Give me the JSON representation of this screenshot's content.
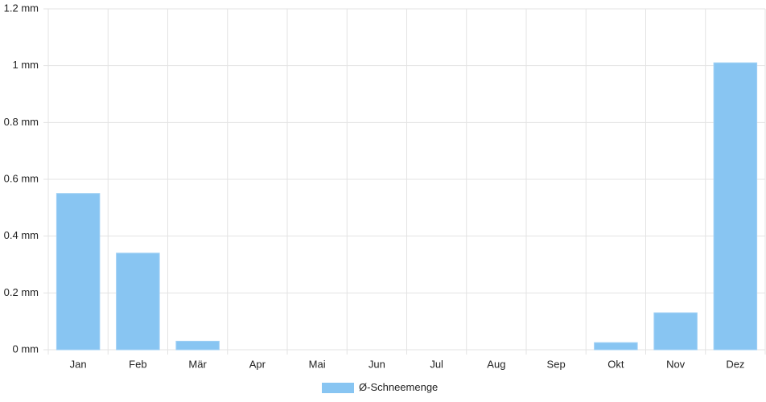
{
  "chart_data": {
    "type": "bar",
    "categories": [
      "Jan",
      "Feb",
      "Mär",
      "Apr",
      "Mai",
      "Jun",
      "Jul",
      "Aug",
      "Sep",
      "Okt",
      "Nov",
      "Dez"
    ],
    "series": [
      {
        "name": "Ø-Schneemenge",
        "color": "#88c5f2",
        "values": [
          0.55,
          0.34,
          0.03,
          0,
          0,
          0,
          0,
          0,
          0,
          0.025,
          0.13,
          1.01
        ]
      }
    ],
    "ylim": [
      0,
      1.2
    ],
    "yticks": [
      {
        "value": 0,
        "label": "0 mm"
      },
      {
        "value": 0.2,
        "label": "0.2 mm"
      },
      {
        "value": 0.4,
        "label": "0.4 mm"
      },
      {
        "value": 0.6,
        "label": "0.6 mm"
      },
      {
        "value": 0.8,
        "label": "0.8 mm"
      },
      {
        "value": 1,
        "label": "1 mm"
      },
      {
        "value": 1.2,
        "label": "1.2 mm"
      }
    ],
    "grid": true,
    "legend": "bottom"
  }
}
